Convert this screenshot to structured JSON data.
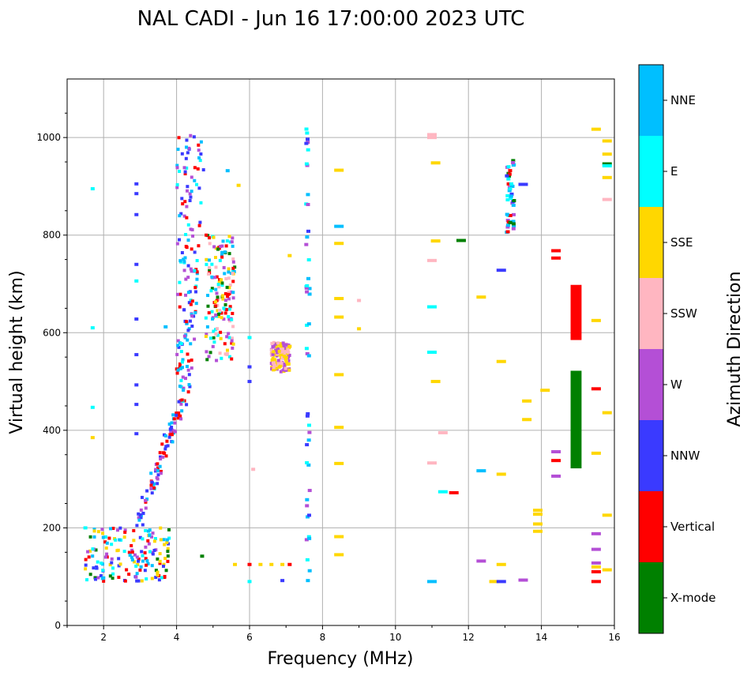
{
  "chart_data": {
    "type": "scatter",
    "title": "NAL CADI - Jun 16 17:00:00 2023 UTC",
    "xlabel": "Frequency (MHz)",
    "ylabel": "Virtual height (km)",
    "xlim": [
      1,
      16
    ],
    "ylim": [
      0,
      1120
    ],
    "xticks": [
      2,
      4,
      6,
      8,
      10,
      12,
      14,
      16
    ],
    "yticks": [
      0,
      200,
      400,
      600,
      800,
      1000
    ],
    "grid": true,
    "colorbar": {
      "label": "Azimuth Direction",
      "categories": [
        {
          "name": "X-mode",
          "color": "#008000"
        },
        {
          "name": "Vertical",
          "color": "#ff0000"
        },
        {
          "name": "NNW",
          "color": "#3a3aff"
        },
        {
          "name": "W",
          "color": "#b44fd6"
        },
        {
          "name": "SSW",
          "color": "#ffb6c1"
        },
        {
          "name": "SSE",
          "color": "#ffd700"
        },
        {
          "name": "E",
          "color": "#00ffff"
        },
        {
          "name": "NNE",
          "color": "#00bfff"
        }
      ]
    },
    "echo_traces": [
      {
        "name": "low-frequency E-region",
        "f_range": [
          1.5,
          3.8
        ],
        "h_range": [
          90,
          200
        ],
        "dirs": [
          "Vertical",
          "NNE",
          "E",
          "W",
          "NNW",
          "SSE",
          "X-mode"
        ]
      },
      {
        "name": "F-region rising trace",
        "f_range": [
          2.9,
          4.1
        ],
        "h_range": [
          200,
          450
        ],
        "dirs": [
          "Vertical",
          "NNE",
          "NNW",
          "W"
        ]
      },
      {
        "name": "F-region Vertical core",
        "f_range": [
          4.0,
          4.8
        ],
        "h_range": [
          450,
          1010
        ],
        "dirs": [
          "Vertical",
          "NNE",
          "E",
          "W",
          "NNW"
        ]
      },
      {
        "name": "F-region X-mode cloud",
        "f_range": [
          4.8,
          5.6
        ],
        "h_range": [
          540,
          800
        ],
        "dirs": [
          "X-mode",
          "Vertical",
          "NNE",
          "E",
          "SSE",
          "SSW",
          "W"
        ]
      },
      {
        "name": "Sporadic layer ~6.5 MHz",
        "f_range": [
          6.6,
          7.1
        ],
        "h_range": [
          520,
          580
        ],
        "dirs": [
          "SSW",
          "W",
          "SSE"
        ]
      },
      {
        "name": "Column at 7.6 MHz",
        "f_range": [
          7.55,
          7.65
        ],
        "h_range": [
          90,
          1020
        ],
        "dirs": [
          "NNW",
          "W",
          "E",
          "NNE"
        ]
      },
      {
        "name": "Column at 13.1 MHz",
        "f_range": [
          13.05,
          13.25
        ],
        "h_range": [
          805,
          965
        ],
        "dirs": [
          "NNE",
          "E",
          "Vertical",
          "NNW",
          "X-mode",
          "W"
        ]
      },
      {
        "name": "Block at 14.9 MHz (X-mode)",
        "f_range": [
          14.8,
          15.1
        ],
        "h_range": [
          322,
          522
        ],
        "dirs": [
          "X-mode"
        ]
      },
      {
        "name": "Block at 14.9 MHz (Vertical)",
        "f_range": [
          14.8,
          15.1
        ],
        "h_range": [
          585,
          698
        ],
        "dirs": [
          "Vertical"
        ]
      }
    ]
  }
}
